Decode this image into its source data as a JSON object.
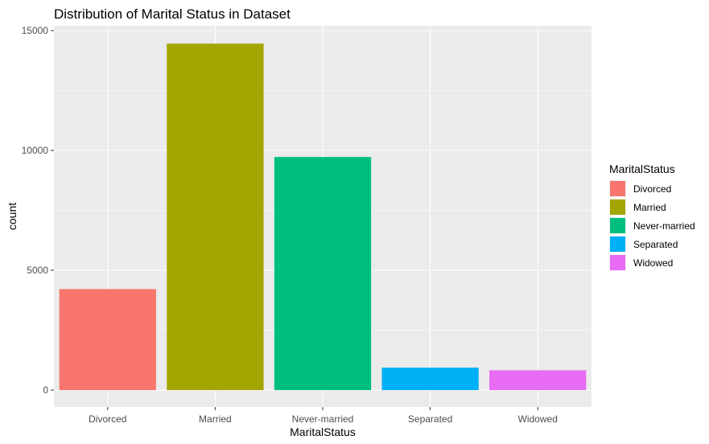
{
  "chart_data": {
    "type": "bar",
    "title": "Distribution of Marital Status in Dataset",
    "xlabel": "MaritalStatus",
    "ylabel": "count",
    "categories": [
      "Divorced",
      "Married",
      "Never-married",
      "Separated",
      "Widowed"
    ],
    "values": [
      4214,
      14456,
      9726,
      939,
      827
    ],
    "colors": [
      "#F8766D",
      "#A3A500",
      "#00BF7D",
      "#00B0F6",
      "#E76BF3"
    ],
    "ylim": [
      0,
      15500
    ],
    "yticks": [
      0,
      5000,
      10000,
      15000
    ],
    "ytick_labels": [
      "0",
      "5000",
      "10000",
      "15000"
    ],
    "grid": true,
    "panel_background": "#EBEBEB",
    "grid_color": "#FFFFFF",
    "legend": {
      "title": "MaritalStatus",
      "position": "right",
      "entries": [
        "Divorced",
        "Married",
        "Never-married",
        "Separated",
        "Widowed"
      ]
    }
  }
}
